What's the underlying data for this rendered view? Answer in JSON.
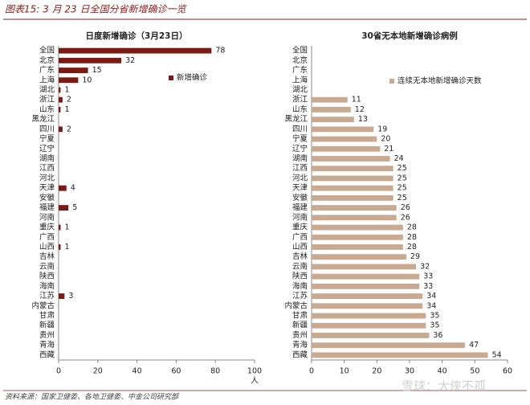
{
  "header": {
    "title": "图表15: 3 月 23 日全国分省新增确诊一览"
  },
  "chart_data": [
    {
      "type": "bar",
      "orientation": "horizontal",
      "title": "日度新增确诊（3月23日）",
      "x_label": "人",
      "categories": [
        "全国",
        "北京",
        "广东",
        "上海",
        "湖北",
        "浙江",
        "山东",
        "黑龙江",
        "四川",
        "宁夏",
        "辽宁",
        "湖南",
        "江西",
        "河北",
        "天津",
        "安徽",
        "福建",
        "河南",
        "重庆",
        "广西",
        "山西",
        "吉林",
        "云南",
        "陕西",
        "海南",
        "江苏",
        "内蒙古",
        "甘肃",
        "新疆",
        "贵州",
        "青海",
        "西藏"
      ],
      "series": [
        {
          "name": "新增确诊",
          "color": "#7b1a12",
          "values": [
            78,
            32,
            15,
            10,
            1,
            2,
            1,
            null,
            2,
            null,
            null,
            null,
            null,
            null,
            4,
            null,
            5,
            null,
            1,
            null,
            1,
            null,
            null,
            null,
            null,
            3,
            null,
            null,
            null,
            null,
            null,
            null
          ]
        }
      ],
      "xlim": [
        0,
        100
      ],
      "xticks": [
        0,
        20,
        40,
        60,
        80,
        100
      ],
      "legend": "upper-right"
    },
    {
      "type": "bar",
      "orientation": "horizontal",
      "title": "30省无本地新增确诊病例",
      "categories": [
        "全国",
        "北京",
        "广东",
        "上海",
        "湖北",
        "浙江",
        "山东",
        "黑龙江",
        "四川",
        "宁夏",
        "辽宁",
        "湖南",
        "江西",
        "河北",
        "天津",
        "安徽",
        "福建",
        "河南",
        "重庆",
        "广西",
        "山西",
        "吉林",
        "云南",
        "陕西",
        "海南",
        "江苏",
        "内蒙古",
        "甘肃",
        "新疆",
        "贵州",
        "青海",
        "西藏"
      ],
      "series": [
        {
          "name": "连续无本地新增确诊天数",
          "color": "#c9a98f",
          "values": [
            null,
            null,
            null,
            null,
            null,
            11,
            12,
            13,
            19,
            20,
            21,
            24,
            25,
            25,
            25,
            25,
            26,
            26,
            28,
            28,
            28,
            29,
            32,
            33,
            33,
            34,
            34,
            35,
            35,
            36,
            47,
            54
          ]
        }
      ],
      "xlim": [
        0,
        60
      ],
      "xticks": [
        0,
        10,
        20,
        30,
        40,
        50,
        60
      ],
      "legend": "upper-right"
    }
  ],
  "footer": {
    "source": "资料来源：国家卫健委、各地卫健委、中金公司研究部",
    "watermark": "雪球：大侠不孤"
  }
}
